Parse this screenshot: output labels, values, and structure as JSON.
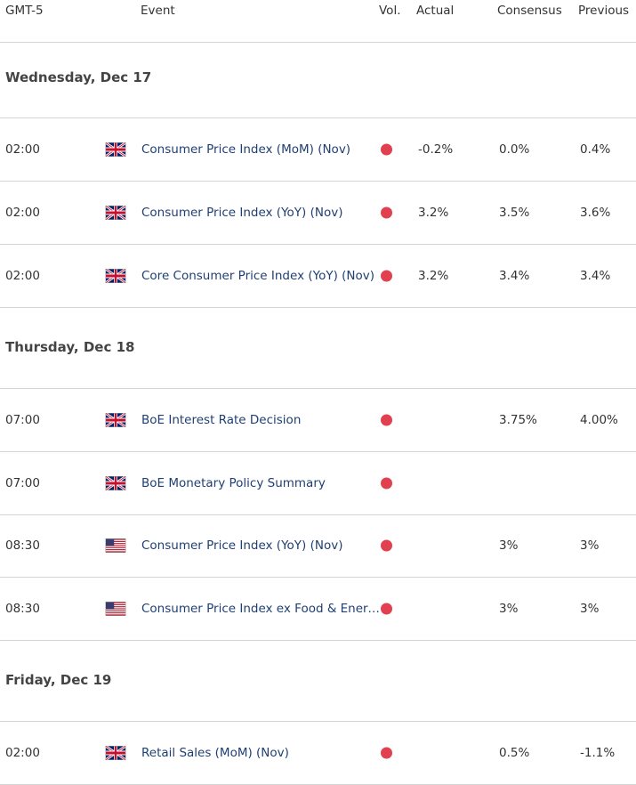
{
  "header": {
    "timezone": "GMT-5",
    "event": "Event",
    "vol": "Vol.",
    "actual": "Actual",
    "consensus": "Consensus",
    "previous": "Previous"
  },
  "colors": {
    "vol_high": "#e0404f",
    "event_text": "#1f3f73"
  },
  "days": [
    {
      "label": "Wednesday, Dec 17",
      "events": [
        {
          "time": "02:00",
          "flag": "uk-flag-icon",
          "name": "Consumer Price Index (MoM) (Nov)",
          "actual": "-0.2%",
          "consensus": "0.0%",
          "previous": "0.4%"
        },
        {
          "time": "02:00",
          "flag": "uk-flag-icon",
          "name": "Consumer Price Index (YoY) (Nov)",
          "actual": "3.2%",
          "consensus": "3.5%",
          "previous": "3.6%"
        },
        {
          "time": "02:00",
          "flag": "uk-flag-icon",
          "name": "Core Consumer Price Index (YoY) (Nov)",
          "actual": "3.2%",
          "consensus": "3.4%",
          "previous": "3.4%"
        }
      ]
    },
    {
      "label": "Thursday, Dec 18",
      "events": [
        {
          "time": "07:00",
          "flag": "uk-flag-icon",
          "name": "BoE Interest Rate Decision",
          "actual": "",
          "consensus": "3.75%",
          "previous": "4.00%"
        },
        {
          "time": "07:00",
          "flag": "uk-flag-icon",
          "name": "BoE Monetary Policy Summary",
          "actual": "",
          "consensus": "",
          "previous": ""
        },
        {
          "time": "08:30",
          "flag": "us-flag-icon",
          "name": "Consumer Price Index (YoY) (Nov)",
          "actual": "",
          "consensus": "3%",
          "previous": "3%"
        },
        {
          "time": "08:30",
          "flag": "us-flag-icon",
          "name": "Consumer Price Index ex Food & Energy (YoY) (Nov)",
          "actual": "",
          "consensus": "3%",
          "previous": "3%"
        }
      ]
    },
    {
      "label": "Friday, Dec 19",
      "events": [
        {
          "time": "02:00",
          "flag": "uk-flag-icon",
          "name": "Retail Sales (MoM) (Nov)",
          "actual": "",
          "consensus": "0.5%",
          "previous": "-1.1%"
        }
      ]
    }
  ]
}
